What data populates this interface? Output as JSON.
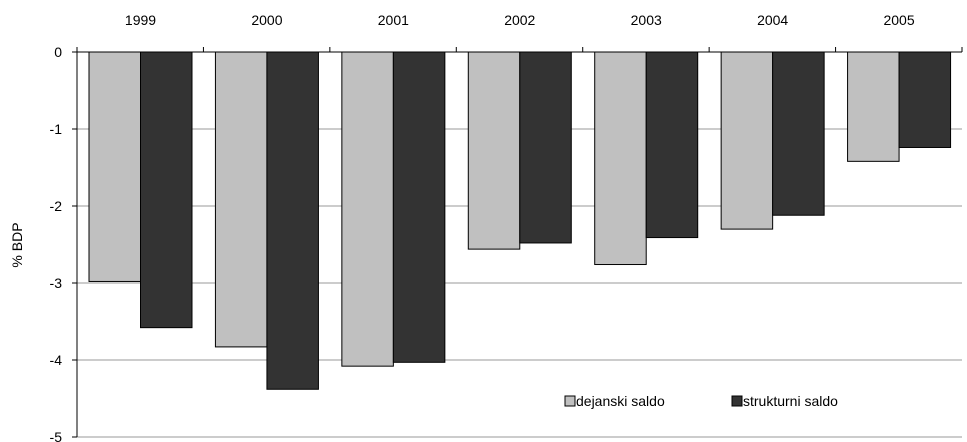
{
  "chart_data": {
    "type": "bar",
    "categories": [
      "1999",
      "2000",
      "2001",
      "2002",
      "2003",
      "2004",
      "2005"
    ],
    "series": [
      {
        "name": "dejanski saldo",
        "color": "#c0c0c0",
        "values": [
          -2.98,
          -3.83,
          -4.08,
          -2.56,
          -2.76,
          -2.3,
          -1.42
        ]
      },
      {
        "name": "strukturni saldo",
        "color": "#333333",
        "values": [
          -3.58,
          -4.38,
          -4.03,
          -2.48,
          -2.41,
          -2.12,
          -1.24
        ]
      }
    ],
    "ylabel": "% BDP",
    "ylim": [
      -5,
      0
    ],
    "yticks": [
      0,
      -1,
      -2,
      -3,
      -4,
      -5
    ],
    "grid": true,
    "category_labels_position": "top",
    "legend_position": "bottom-right"
  }
}
